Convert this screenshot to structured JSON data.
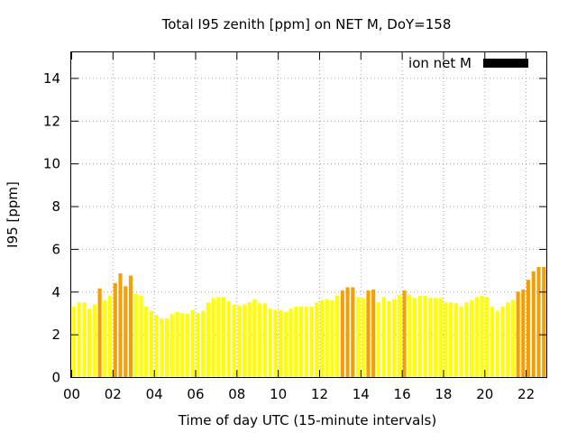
{
  "chart_data": {
    "type": "bar",
    "title": "Total I95 zenith [ppm] on NET M, DoY=158",
    "xlabel": "Time of day UTC (15-minute intervals)",
    "ylabel": "I95 [ppm]",
    "xlim": [
      0,
      23
    ],
    "ylim": [
      0,
      15.2
    ],
    "xticks": [
      0,
      2,
      4,
      6,
      8,
      10,
      12,
      14,
      16,
      18,
      20,
      22
    ],
    "xtick_labels": [
      "00",
      "02",
      "04",
      "06",
      "08",
      "10",
      "12",
      "14",
      "16",
      "18",
      "20",
      "22"
    ],
    "yticks": [
      0,
      2,
      4,
      6,
      8,
      10,
      12,
      14
    ],
    "ytick_labels": [
      "0",
      "2",
      "4",
      "6",
      "8",
      "10",
      "12",
      "14"
    ],
    "grid": true,
    "legend": {
      "position": "top-right",
      "entries": [
        {
          "name": "ion net M",
          "color": "#000000"
        }
      ]
    },
    "colors": {
      "normal": "#ffff00",
      "high": "#f5a000"
    },
    "threshold": 4.0,
    "bin_hours": 0.25,
    "series": [
      {
        "name": "ion net M",
        "x": [
          0,
          0.25,
          0.5,
          0.75,
          1,
          1.25,
          1.5,
          1.75,
          2,
          2.25,
          2.5,
          2.75,
          3,
          3.25,
          3.5,
          3.75,
          4,
          4.25,
          4.5,
          4.75,
          5,
          5.25,
          5.5,
          5.75,
          6,
          6.25,
          6.5,
          6.75,
          7,
          7.25,
          7.5,
          7.75,
          8,
          8.25,
          8.5,
          8.75,
          9,
          9.25,
          9.5,
          9.75,
          10,
          10.25,
          10.5,
          10.75,
          11,
          11.25,
          11.5,
          11.75,
          12,
          12.25,
          12.5,
          12.75,
          13,
          13.25,
          13.5,
          13.75,
          14,
          14.25,
          14.5,
          14.75,
          15,
          15.25,
          15.5,
          15.75,
          16,
          16.25,
          16.5,
          16.75,
          17,
          17.25,
          17.5,
          17.75,
          18,
          18.25,
          18.5,
          18.75,
          19,
          19.25,
          19.5,
          19.75,
          20,
          20.25,
          20.5,
          20.75,
          21,
          21.25,
          21.5,
          21.75,
          22,
          22.25,
          22.5,
          22.75
        ],
        "values": [
          3.3,
          3.5,
          3.5,
          3.2,
          3.4,
          4.15,
          3.6,
          3.8,
          4.4,
          4.85,
          4.25,
          4.75,
          3.9,
          3.8,
          3.3,
          3.1,
          2.9,
          2.75,
          2.75,
          2.95,
          3.05,
          3.0,
          2.95,
          3.15,
          3.0,
          3.1,
          3.5,
          3.7,
          3.75,
          3.75,
          3.55,
          3.4,
          3.35,
          3.4,
          3.5,
          3.65,
          3.45,
          3.45,
          3.2,
          3.15,
          3.15,
          3.05,
          3.2,
          3.3,
          3.3,
          3.3,
          3.3,
          3.5,
          3.6,
          3.65,
          3.6,
          3.8,
          4.05,
          4.2,
          4.2,
          3.75,
          3.7,
          4.05,
          4.1,
          3.5,
          3.75,
          3.55,
          3.65,
          3.85,
          4.05,
          3.85,
          3.7,
          3.8,
          3.8,
          3.7,
          3.7,
          3.7,
          3.5,
          3.5,
          3.45,
          3.3,
          3.5,
          3.6,
          3.75,
          3.8,
          3.75,
          3.3,
          3.1,
          3.3,
          3.5,
          3.6,
          4.0,
          4.1,
          4.55,
          4.95,
          5.15,
          5.15
        ]
      }
    ]
  }
}
